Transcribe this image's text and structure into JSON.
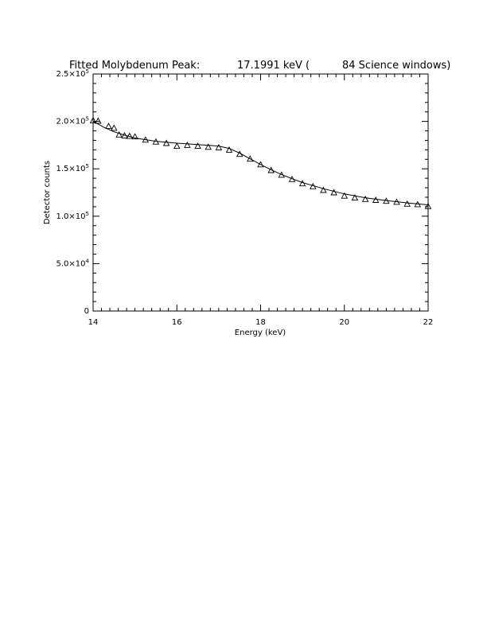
{
  "chart_data": {
    "type": "scatter",
    "title": {
      "prefix": "Fitted Molybdenum Peak:",
      "energy": "17.1991 keV (",
      "windows": "84 Science windows)"
    },
    "xlabel": "Energy (keV)",
    "ylabel": "Detector counts",
    "xlim": [
      14,
      22
    ],
    "ylim": [
      0,
      250000
    ],
    "x_ticks": [
      {
        "value": 14,
        "label": "14"
      },
      {
        "value": 16,
        "label": "16"
      },
      {
        "value": 18,
        "label": "18"
      },
      {
        "value": 20,
        "label": "20"
      },
      {
        "value": 22,
        "label": "22"
      }
    ],
    "y_ticks": [
      {
        "value": 0,
        "mantissa": "0",
        "exp": ""
      },
      {
        "value": 50000,
        "mantissa": "5.0×10",
        "exp": "4"
      },
      {
        "value": 100000,
        "mantissa": "1.0×10",
        "exp": "5"
      },
      {
        "value": 150000,
        "mantissa": "1.5×10",
        "exp": "5"
      },
      {
        "value": 200000,
        "mantissa": "2.0×10",
        "exp": "5"
      },
      {
        "value": 250000,
        "mantissa": "2.5×10",
        "exp": "5"
      }
    ],
    "grid": false,
    "series": [
      {
        "marker": "triangle",
        "x": [
          14.0,
          14.12,
          14.37,
          14.5,
          14.62,
          14.75,
          14.87,
          15.0,
          15.25,
          15.5,
          15.75,
          16.0,
          16.25,
          16.5,
          16.75,
          17.0,
          17.25,
          17.5,
          17.75,
          18.0,
          18.25,
          18.5,
          18.75,
          19.0,
          19.25,
          19.5,
          19.75,
          20.0,
          20.25,
          20.5,
          20.75,
          21.0,
          21.25,
          21.5,
          21.75,
          22.0
        ],
        "y": [
          201000,
          200500,
          195000,
          193000,
          186000,
          185000,
          184500,
          184000,
          180500,
          178500,
          177000,
          174000,
          175000,
          174000,
          173000,
          172500,
          170000,
          165500,
          160500,
          154500,
          148500,
          143500,
          139000,
          134500,
          131500,
          127500,
          125000,
          121500,
          119500,
          118000,
          117000,
          116000,
          115000,
          113000,
          112500,
          110500
        ]
      },
      {
        "marker": "line",
        "x": [
          14.0,
          14.25,
          14.5,
          14.75,
          15.0,
          15.5,
          16.0,
          16.5,
          17.0,
          17.25,
          17.5,
          17.75,
          18.0,
          18.25,
          18.5,
          18.75,
          19.0,
          19.5,
          20.0,
          20.5,
          21.0,
          21.5,
          22.0
        ],
        "y": [
          200000,
          194000,
          189000,
          185500,
          182500,
          179000,
          177000,
          175500,
          174000,
          171500,
          166500,
          160500,
          154500,
          149000,
          144000,
          139500,
          135500,
          129000,
          123500,
          119500,
          116500,
          114000,
          112000
        ]
      }
    ]
  }
}
